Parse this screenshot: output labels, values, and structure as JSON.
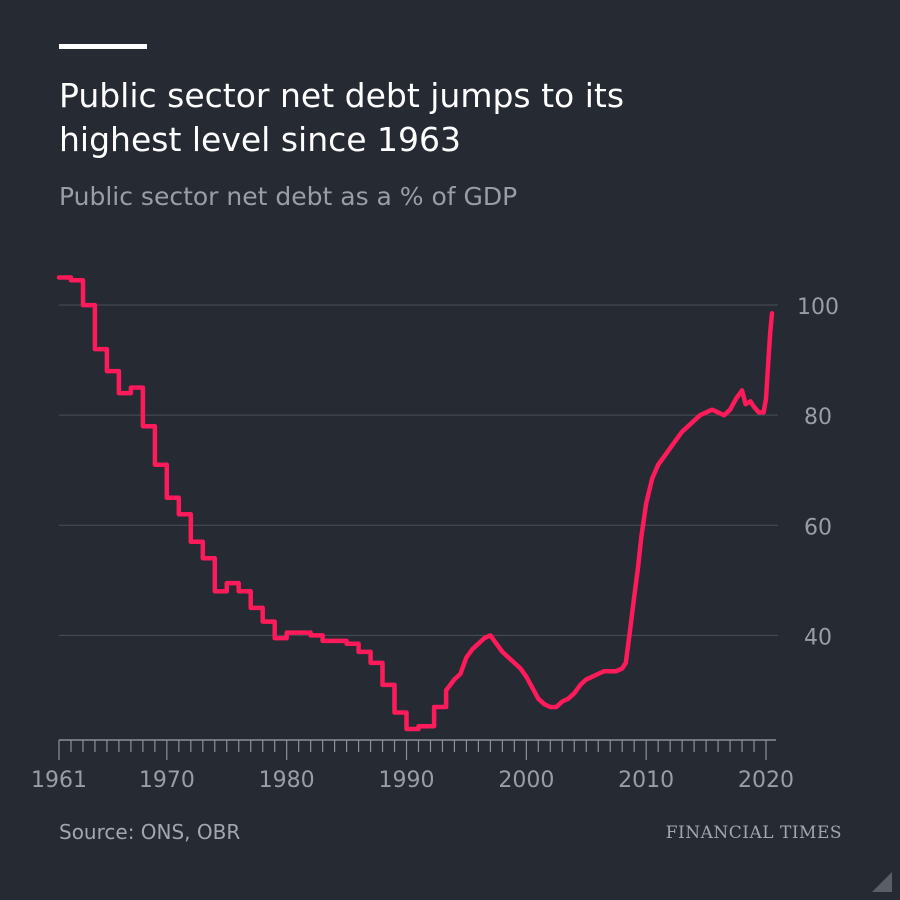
{
  "header": {
    "title_line1": "Public sector net debt jumps to its",
    "title_line2": "highest level since 1963",
    "subtitle": "Public sector net debt as a % of GDP"
  },
  "footer": {
    "source": "Source: ONS, OBR",
    "brand": "Financial Times"
  },
  "colors": {
    "background": "#262a33",
    "series": "#ff1a5b",
    "grid": "#4a4e57",
    "text_muted": "#9a9da4"
  },
  "chart_data": {
    "type": "line",
    "title": "Public sector net debt jumps to its highest level since 1963",
    "subtitle": "Public sector net debt as a % of GDP",
    "xlabel": "",
    "ylabel": "",
    "xlim": [
      1961,
      2020.5
    ],
    "ylim": [
      21,
      110
    ],
    "x_ticks": [
      1961,
      1970,
      1980,
      1990,
      2000,
      2010,
      2020
    ],
    "y_ticks": [
      40,
      60,
      80,
      100
    ],
    "grid": true,
    "y_axis_position": "right",
    "series": [
      {
        "name": "",
        "points": [
          [
            1961.0,
            105
          ],
          [
            1962.0,
            105
          ],
          [
            1962.0,
            104.5
          ],
          [
            1963.0,
            104.5
          ],
          [
            1963.0,
            100
          ],
          [
            1964.0,
            100
          ],
          [
            1964.0,
            92
          ],
          [
            1965.0,
            92
          ],
          [
            1965.0,
            88
          ],
          [
            1966.0,
            88
          ],
          [
            1966.0,
            84
          ],
          [
            1967.0,
            84
          ],
          [
            1967.0,
            85
          ],
          [
            1968.0,
            85
          ],
          [
            1968.0,
            78
          ],
          [
            1969.0,
            78
          ],
          [
            1969.0,
            71
          ],
          [
            1970.0,
            71
          ],
          [
            1970.0,
            65
          ],
          [
            1971.0,
            65
          ],
          [
            1971.0,
            62
          ],
          [
            1972.0,
            62
          ],
          [
            1972.0,
            57
          ],
          [
            1973.0,
            57
          ],
          [
            1973.0,
            54
          ],
          [
            1974.0,
            54
          ],
          [
            1974.0,
            48
          ],
          [
            1975.0,
            48
          ],
          [
            1975.0,
            49.5
          ],
          [
            1976.0,
            49.5
          ],
          [
            1976.0,
            48
          ],
          [
            1977.0,
            48
          ],
          [
            1977.0,
            45
          ],
          [
            1978.0,
            45
          ],
          [
            1978.0,
            42.5
          ],
          [
            1979.0,
            42.5
          ],
          [
            1979.0,
            39.5
          ],
          [
            1980.0,
            39.5
          ],
          [
            1980.0,
            40.5
          ],
          [
            1982.0,
            40.5
          ],
          [
            1982.0,
            40
          ],
          [
            1983.0,
            40
          ],
          [
            1983.0,
            39
          ],
          [
            1984.0,
            39
          ],
          [
            1984.0,
            39
          ],
          [
            1985.0,
            39
          ],
          [
            1985.0,
            38.5
          ],
          [
            1986.0,
            38.5
          ],
          [
            1986.0,
            37
          ],
          [
            1987.0,
            37
          ],
          [
            1987.0,
            35
          ],
          [
            1988.0,
            35
          ],
          [
            1988.0,
            31
          ],
          [
            1989.0,
            31
          ],
          [
            1989.0,
            26
          ],
          [
            1990.0,
            26
          ],
          [
            1990.0,
            23
          ],
          [
            1991.0,
            23
          ],
          [
            1991.0,
            23.5
          ],
          [
            1992.3,
            23.5
          ],
          [
            1992.3,
            27
          ],
          [
            1993.3,
            27
          ],
          [
            1993.3,
            30
          ],
          [
            1994.0,
            32
          ],
          [
            1994.5,
            33
          ],
          [
            1995.0,
            36
          ],
          [
            1995.5,
            37.5
          ],
          [
            1996.0,
            38.5
          ],
          [
            1996.5,
            39.5
          ],
          [
            1997.0,
            40
          ],
          [
            1997.5,
            38.5
          ],
          [
            1998.0,
            37
          ],
          [
            1998.5,
            36
          ],
          [
            1999.0,
            35
          ],
          [
            1999.5,
            34
          ],
          [
            2000.0,
            32.5
          ],
          [
            2000.5,
            30.5
          ],
          [
            2001.0,
            28.5
          ],
          [
            2001.5,
            27.5
          ],
          [
            2002.0,
            27
          ],
          [
            2002.5,
            27
          ],
          [
            2003.0,
            28
          ],
          [
            2003.5,
            28.5
          ],
          [
            2004.0,
            29.5
          ],
          [
            2004.5,
            31
          ],
          [
            2005.0,
            32
          ],
          [
            2005.5,
            32.5
          ],
          [
            2006.0,
            33
          ],
          [
            2006.5,
            33.5
          ],
          [
            2007.0,
            33.5
          ],
          [
            2007.5,
            33.5
          ],
          [
            2008.0,
            34
          ],
          [
            2008.3,
            35
          ],
          [
            2008.6,
            40
          ],
          [
            2009.0,
            47
          ],
          [
            2009.3,
            52
          ],
          [
            2009.6,
            58
          ],
          [
            2010.0,
            64
          ],
          [
            2010.5,
            68.5
          ],
          [
            2011.0,
            71
          ],
          [
            2011.5,
            72.5
          ],
          [
            2012.0,
            74
          ],
          [
            2012.5,
            75.5
          ],
          [
            2013.0,
            77
          ],
          [
            2013.5,
            78
          ],
          [
            2014.0,
            79
          ],
          [
            2014.5,
            80
          ],
          [
            2015.0,
            80.5
          ],
          [
            2015.5,
            81
          ],
          [
            2016.0,
            80.5
          ],
          [
            2016.5,
            80
          ],
          [
            2017.0,
            81
          ],
          [
            2017.5,
            83
          ],
          [
            2018.0,
            84.5
          ],
          [
            2018.3,
            82
          ],
          [
            2018.7,
            82.5
          ],
          [
            2019.0,
            81.5
          ],
          [
            2019.4,
            80.5
          ],
          [
            2019.8,
            80.5
          ],
          [
            2020.0,
            83
          ],
          [
            2020.2,
            90
          ],
          [
            2020.35,
            95
          ],
          [
            2020.5,
            98.5
          ]
        ]
      }
    ]
  }
}
